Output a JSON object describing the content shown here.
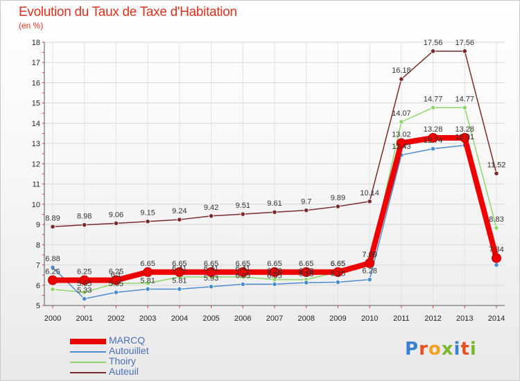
{
  "title": "Evolution du Taux de Taxe d'Habitation",
  "subtitle": "(en %)",
  "logo": {
    "text": "Proxiti",
    "letter_colors": [
      "#3a7fd0",
      "#e8501e",
      "#f2a020",
      "#7bb62e",
      "#3a7fd0",
      "#e8501e",
      "#7bb62e"
    ]
  },
  "chart_data": {
    "type": "line",
    "x": [
      2000,
      2001,
      2002,
      2003,
      2004,
      2005,
      2006,
      2007,
      2008,
      2009,
      2010,
      2011,
      2012,
      2013,
      2014
    ],
    "ylim": [
      5,
      18
    ],
    "yticks": [
      5,
      6,
      7,
      8,
      9,
      10,
      11,
      12,
      13,
      14,
      15,
      16,
      17,
      18
    ],
    "legend_position": "bottom-left",
    "series": [
      {
        "name": "Auteuil",
        "color": "#7a2a2a",
        "values": [
          8.89,
          8.98,
          9.06,
          9.15,
          9.24,
          9.42,
          9.51,
          9.61,
          9.7,
          9.89,
          10.14,
          16.18,
          17.56,
          17.56,
          11.52
        ],
        "labels": [
          "8.89",
          "8.98",
          "9.06",
          "9.15",
          "9.24",
          "9.42",
          "9.51",
          "9.61",
          "9.7",
          "9.89",
          "10.14",
          "16.18",
          "17.56",
          "17.56",
          "11.52"
        ]
      },
      {
        "name": "Thoiry",
        "color": "#8fd66a",
        "values": [
          5.8,
          5.65,
          6.1,
          6.1,
          6.41,
          6.41,
          6.41,
          6.28,
          6.28,
          6.65,
          7.09,
          14.07,
          14.77,
          14.77,
          8.83
        ],
        "labels": [
          "",
          "5.65",
          "6.1",
          "",
          "6.41",
          "6.41",
          "6.41",
          "6.28",
          "6.28",
          "6.65",
          "7.09",
          "14.07",
          "14.77",
          "14.77",
          "8.83"
        ]
      },
      {
        "name": "Autouillet",
        "color": "#4a8bd0",
        "values": [
          6.88,
          5.33,
          5.65,
          5.81,
          5.81,
          5.93,
          6.05,
          6.05,
          6.13,
          6.15,
          6.28,
          12.43,
          12.74,
          12.91,
          7.0
        ],
        "labels": [
          "6.88",
          "5.33",
          "5.65",
          "5.81",
          "5.81",
          "5.93",
          "6.05",
          "6.05",
          "6.13",
          "6.15",
          "6.28",
          "12.43",
          "12.74",
          "12.91",
          ""
        ]
      },
      {
        "name": "MARCQ",
        "color": "#ee0000",
        "values": [
          6.25,
          6.25,
          6.25,
          6.65,
          6.65,
          6.65,
          6.65,
          6.65,
          6.65,
          6.65,
          7.09,
          13.02,
          13.28,
          13.28,
          7.34
        ],
        "labels": [
          "6.25",
          "6.25",
          "6.25",
          "6.65",
          "6.65",
          "6.65",
          "6.65",
          "6.65",
          "6.65",
          "6.65",
          "7.09",
          "13.02",
          "13.28",
          "13.28",
          "7.34"
        ]
      }
    ],
    "legend_order": [
      "MARCQ",
      "Autouillet",
      "Thoiry",
      "Auteuil"
    ]
  }
}
